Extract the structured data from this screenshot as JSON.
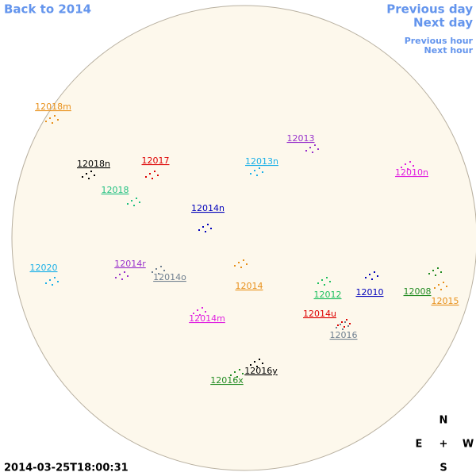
{
  "navigation": {
    "back": "Back to 2014",
    "previous_day": "Previous day",
    "next_day": "Next day",
    "previous_hour": "Previous hour",
    "next_hour": "Next hour"
  },
  "regions": [
    {
      "label": "12018m",
      "color": "#e8901a"
    },
    {
      "label": "12018n",
      "color": "#000000"
    },
    {
      "label": "12017",
      "color": "#dd0000"
    },
    {
      "label": "12013n",
      "color": "#1ab0e8"
    },
    {
      "label": "12013",
      "color": "#9932cc"
    },
    {
      "label": "12010n",
      "color": "#e020e0"
    },
    {
      "label": "12018",
      "color": "#20c080"
    },
    {
      "label": "12014n",
      "color": "#0000bb"
    },
    {
      "label": "12020",
      "color": "#1ab0e8"
    },
    {
      "label": "12014r",
      "color": "#9932cc"
    },
    {
      "label": "12014o",
      "color": "#708090"
    },
    {
      "label": "12014",
      "color": "#e8901a"
    },
    {
      "label": "12012",
      "color": "#20c060"
    },
    {
      "label": "12010",
      "color": "#0000bb"
    },
    {
      "label": "12008",
      "color": "#228b22"
    },
    {
      "label": "12015",
      "color": "#e8901a"
    },
    {
      "label": "12014u",
      "color": "#dd0000"
    },
    {
      "label": "12014m",
      "color": "#e020e0"
    },
    {
      "label": "12016",
      "color": "#708090"
    },
    {
      "label": "12016y",
      "color": "#000000"
    },
    {
      "label": "12016x",
      "color": "#228b22"
    }
  ],
  "compass": {
    "north": "N",
    "east": "E",
    "center": "+",
    "west": "W",
    "south": "S"
  },
  "timestamp": "2014-03-25T18:00:31"
}
